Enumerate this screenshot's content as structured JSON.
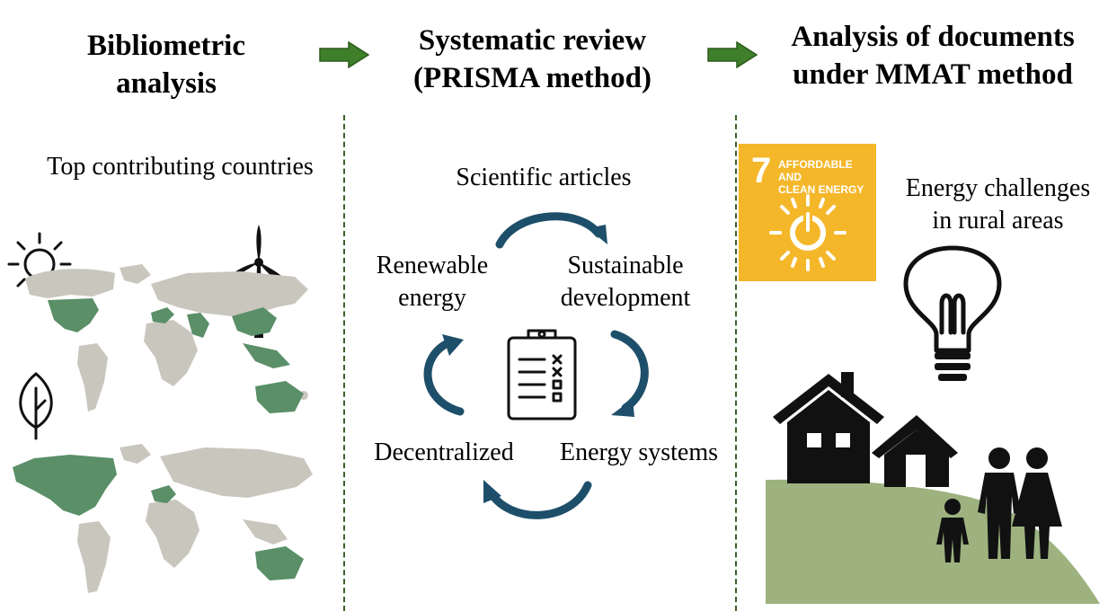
{
  "headings": {
    "bibliometric": [
      "Bibliometric",
      "analysis"
    ],
    "systematic": [
      "Systematic  review",
      "(PRISMA method)"
    ],
    "mmat": [
      "Analysis of documents",
      "under MMAT method"
    ]
  },
  "left": {
    "label": "Top contributing countries",
    "icons": [
      "sun-icon",
      "wind-turbine-icon",
      "leaf-icon"
    ]
  },
  "middle": {
    "cycle_labels": {
      "scientific": "Scientific articles",
      "sustainable": [
        "Sustainable",
        "development"
      ],
      "renewable": [
        "Renewable",
        "energy"
      ],
      "decentralized": "Decentralized",
      "energy_systems": "Energy systems"
    },
    "icons": [
      "clipboard-checklist-icon",
      "cycle-arrow-icon"
    ]
  },
  "right": {
    "sdg": {
      "number": "7",
      "text": [
        "AFFORDABLE AND",
        "CLEAN ENERGY"
      ]
    },
    "label": [
      "Energy challenges",
      "in rural areas"
    ],
    "icons": [
      "light-bulb-icon",
      "house-icon",
      "family-icon"
    ]
  },
  "colors": {
    "arrow_green": "#3f7f2a",
    "map_highlight": "#5a8f68",
    "map_base": "#c9c6be",
    "cycle_arrow": "#1e4f6a",
    "sdg_yellow": "#f5b72a",
    "ground": "#9db27f"
  }
}
